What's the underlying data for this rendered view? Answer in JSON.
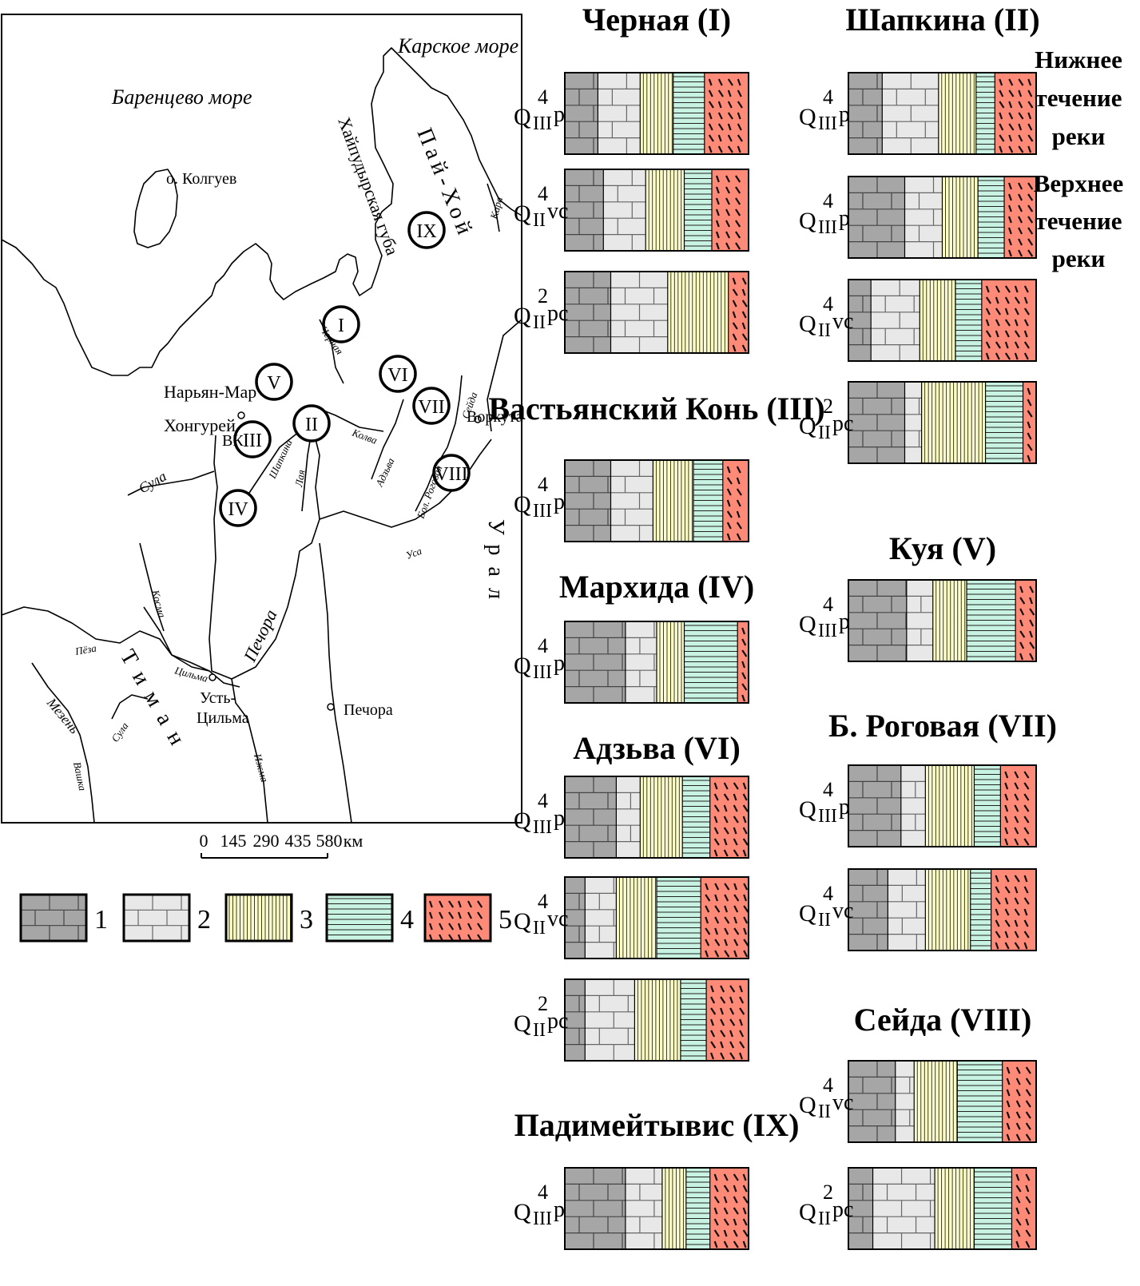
{
  "map": {
    "sea_barents": "Баренцево море",
    "sea_kara": "Карское море",
    "kolguev": "о. Колгуев",
    "naryan_mar": "Нарьян-Мар",
    "khongurey": "Хонгурей",
    "vk": "ВК",
    "vorkuta": "Воркута",
    "pechora_town": "Печора",
    "ust_tsilma_1": "Усть-",
    "ust_tsilma_2": "Цильма",
    "pai_khoi": "Пай-Хой",
    "khaiuduyr": "Хайпудырская губа",
    "ural": "Урал",
    "timan": "Тиман",
    "rivers": {
      "sula": "Сула",
      "sula2": "Сула",
      "kosma": "Косма",
      "peza": "Пёза",
      "tsilma": "Цильма",
      "mezen": "Мезень",
      "vashka": "Вашка",
      "izhma": "Ижма",
      "pechora": "Печора",
      "shapkina": "Шапкина",
      "laya": "Лая",
      "kolva": "Колва",
      "adzva": "Адзьва",
      "bol_rogovaya": "Бол. Роговая",
      "usa": "Уса",
      "seyda": "Сейда",
      "kara": "Кара",
      "chernaya": "Черная"
    },
    "sites": [
      "I",
      "II",
      "III",
      "IV",
      "V",
      "VI",
      "VII",
      "VIII",
      "IX"
    ]
  },
  "scale": {
    "ticks": [
      "0",
      "145",
      "290",
      "435",
      "580"
    ],
    "unit": "км"
  },
  "legend": [
    "1",
    "2",
    "3",
    "4",
    "5"
  ],
  "colors": {
    "dark_gray": "#a6a6a6",
    "light_gray": "#e8e8e8",
    "yellow": "#ffffc8",
    "green": "#c8f2e2",
    "salmon": "#ff8a78"
  },
  "notes": {
    "lower": [
      "Нижнее",
      "течение",
      "реки"
    ],
    "upper": [
      "Верхнее",
      "течение",
      "реки"
    ]
  },
  "sections": [
    {
      "title": "Черная (I)",
      "rows": [
        {
          "q": "Q",
          "sub": "III",
          "sup": "4",
          "suf": "p",
          "pct": [
            18,
            23,
            18,
            17,
            24
          ]
        },
        {
          "q": "Q",
          "sub": "II",
          "sup": "4",
          "suf": "vc",
          "pct": [
            21,
            23,
            21,
            15,
            20
          ]
        },
        {
          "q": "Q",
          "sub": "II",
          "sup": "2",
          "suf": "pc",
          "pct": [
            25,
            31,
            33,
            0,
            11
          ]
        }
      ]
    },
    {
      "title": "Вастьянский Конь (III)",
      "rows": [
        {
          "q": "Q",
          "sub": "III",
          "sup": "4",
          "suf": "p",
          "pct": [
            25,
            23,
            22,
            16,
            14
          ]
        }
      ]
    },
    {
      "title": "Мархида (IV)",
      "rows": [
        {
          "q": "Q",
          "sub": "III",
          "sup": "4",
          "suf": "p",
          "pct": [
            33,
            17,
            15,
            29,
            6
          ]
        }
      ]
    },
    {
      "title": "Адзьва (VI)",
      "rows": [
        {
          "q": "Q",
          "sub": "III",
          "sup": "4",
          "suf": "p",
          "pct": [
            28,
            13,
            23,
            15,
            21
          ]
        },
        {
          "q": "Q",
          "sub": "II",
          "sup": "4",
          "suf": "vc",
          "pct": [
            11,
            17,
            22,
            24,
            26
          ]
        },
        {
          "q": "Q",
          "sub": "II",
          "sup": "2",
          "suf": "pc",
          "pct": [
            11,
            27,
            25,
            14,
            23
          ]
        }
      ]
    },
    {
      "title": "Падимейтывис (IX)",
      "rows": [
        {
          "q": "Q",
          "sub": "III",
          "sup": "4",
          "suf": "p",
          "pct": [
            33,
            20,
            13,
            13,
            21
          ]
        }
      ]
    },
    {
      "title": "Шапкина (II)",
      "rows": [
        {
          "q": "Q",
          "sub": "III",
          "sup": "4",
          "suf": "p",
          "pct": [
            18,
            30,
            20,
            10,
            22
          ]
        },
        {
          "q": "Q",
          "sub": "III",
          "sup": "4",
          "suf": "p",
          "pct": [
            30,
            20,
            19,
            14,
            17
          ]
        },
        {
          "q": "Q",
          "sub": "II",
          "sup": "4",
          "suf": "vc",
          "pct": [
            12,
            26,
            19,
            14,
            29
          ]
        },
        {
          "q": "Q",
          "sub": "II",
          "sup": "2",
          "suf": "pc",
          "pct": [
            30,
            9,
            34,
            20,
            7
          ]
        }
      ]
    },
    {
      "title": "Куя (V)",
      "rows": [
        {
          "q": "Q",
          "sub": "III",
          "sup": "4",
          "suf": "p",
          "pct": [
            31,
            14,
            18,
            26,
            11
          ]
        }
      ]
    },
    {
      "title": "Б. Роговая (VII)",
      "rows": [
        {
          "q": "Q",
          "sub": "III",
          "sup": "4",
          "suf": "p",
          "pct": [
            28,
            13,
            26,
            14,
            19
          ]
        },
        {
          "q": "Q",
          "sub": "II",
          "sup": "4",
          "suf": "vc",
          "pct": [
            21,
            20,
            24,
            11,
            24
          ]
        }
      ]
    },
    {
      "title": "Сейда (VIII)",
      "rows": [
        {
          "q": "Q",
          "sub": "II",
          "sup": "4",
          "suf": "vc",
          "pct": [
            25,
            10,
            23,
            24,
            18
          ]
        },
        {
          "q": "Q",
          "sub": "II",
          "sup": "2",
          "suf": "pc",
          "pct": [
            13,
            33,
            21,
            20,
            13
          ]
        }
      ]
    }
  ]
}
